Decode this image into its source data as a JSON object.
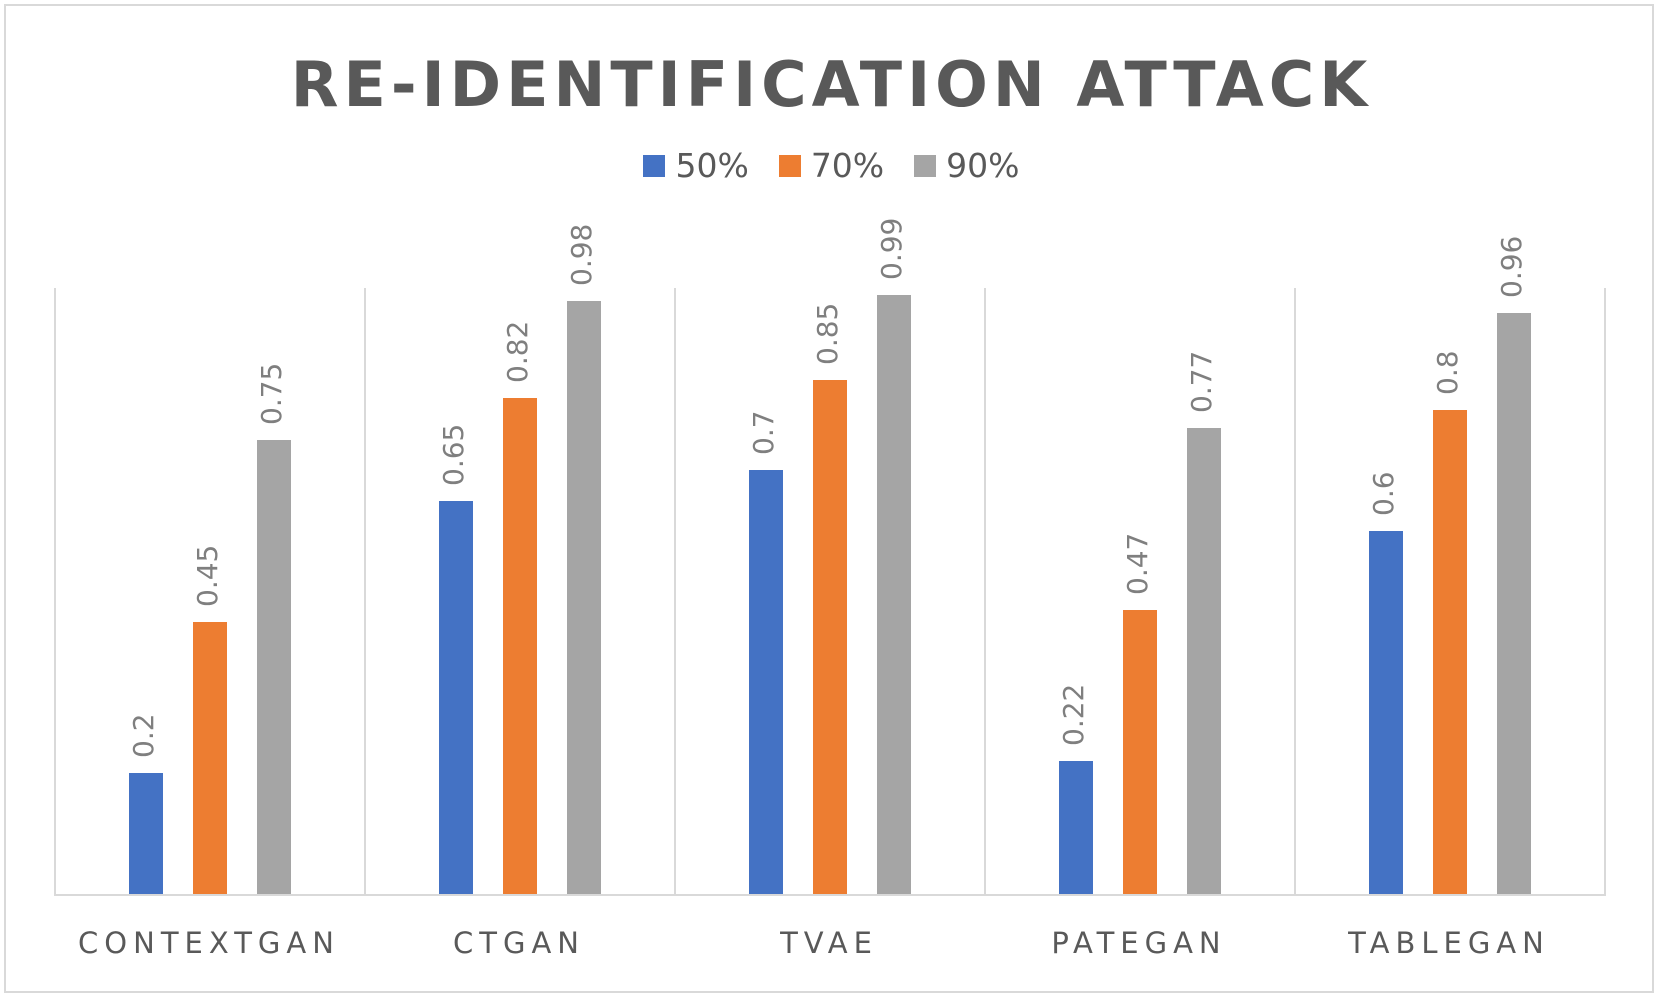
{
  "chart_data": {
    "type": "bar",
    "title": "RE-IDENTIFICATION ATTACK",
    "categories": [
      "CONTEXTGAN",
      "CTGAN",
      "TVAE",
      "PATEGAN",
      "TABLEGAN"
    ],
    "series": [
      {
        "name": "50%",
        "color": "#4472c4",
        "values": [
          0.2,
          0.65,
          0.7,
          0.22,
          0.6
        ]
      },
      {
        "name": "70%",
        "color": "#ed7d31",
        "values": [
          0.45,
          0.82,
          0.85,
          0.47,
          0.8
        ]
      },
      {
        "name": "90%",
        "color": "#a5a5a5",
        "values": [
          0.75,
          0.98,
          0.99,
          0.77,
          0.96
        ]
      }
    ],
    "xlabel": "",
    "ylabel": "",
    "ylim": [
      0,
      1
    ],
    "grid": "vertical category separators",
    "legend_position": "top",
    "data_labels": "rotated vertical above bars"
  }
}
